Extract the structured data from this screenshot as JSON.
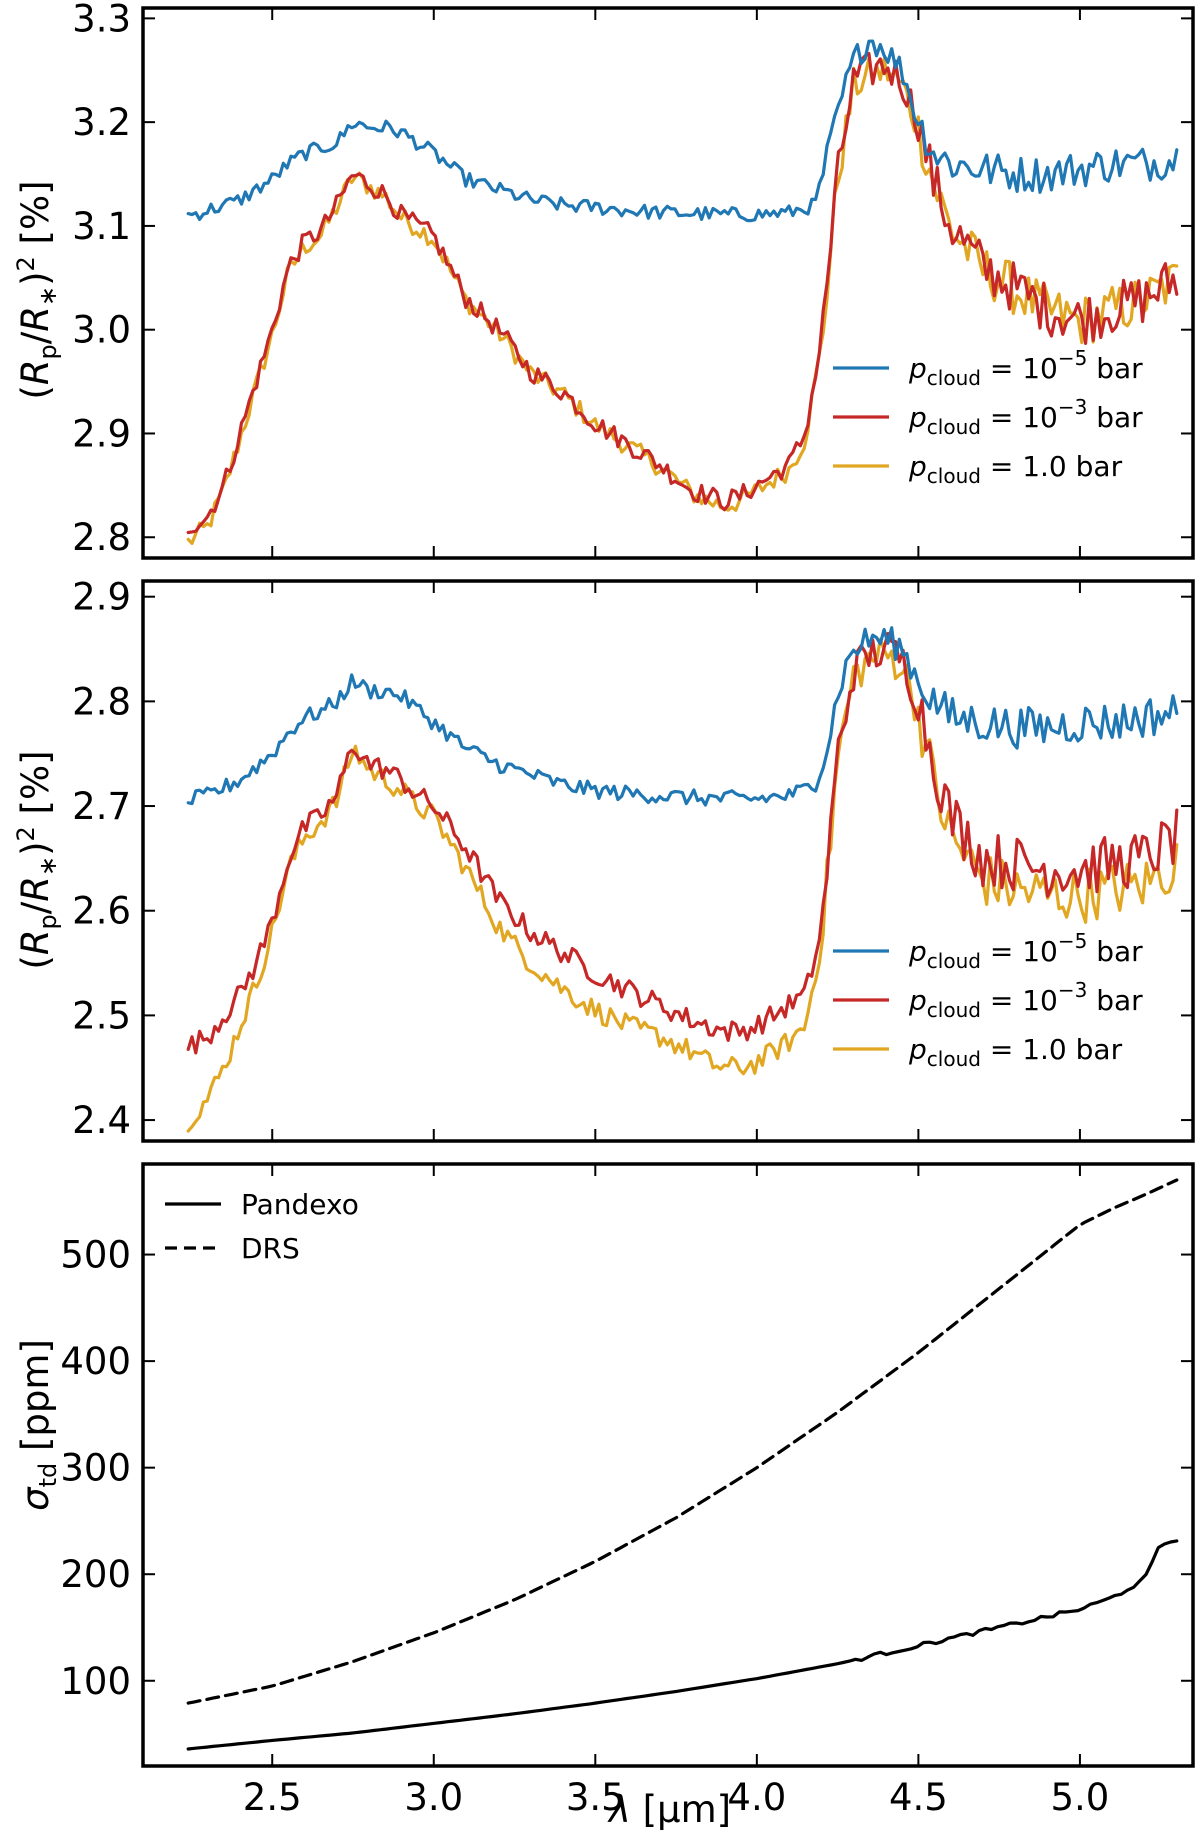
{
  "chart_data": [
    {
      "type": "line",
      "panel": "top",
      "xlabel": "",
      "ylabel_text": "(Rp/R*)² [%]",
      "xlim": [
        2.1,
        5.35
      ],
      "ylim": [
        2.78,
        3.31
      ],
      "xticks": [
        2.5,
        3.0,
        3.5,
        4.0,
        4.5,
        5.0
      ],
      "yticks": [
        2.8,
        2.9,
        3.0,
        3.1,
        3.2,
        3.3
      ],
      "ytick_labels": [
        "2.8",
        "2.9",
        "3.0",
        "3.1",
        "3.2",
        "3.3"
      ],
      "legend_position": "lower-right",
      "series": [
        {
          "name": "p_cloud = 10^-5 bar",
          "legend_value": "10",
          "legend_exp": "−5",
          "color": "#1f77b4",
          "x": [
            2.24,
            2.3,
            2.4,
            2.5,
            2.55,
            2.6,
            2.65,
            2.7,
            2.75,
            2.8,
            2.85,
            2.9,
            3.0,
            3.1,
            3.2,
            3.3,
            3.4,
            3.5,
            3.6,
            3.7,
            3.8,
            3.9,
            4.0,
            4.1,
            4.18,
            4.22,
            4.26,
            4.3,
            4.35,
            4.4,
            4.45,
            4.5,
            4.55,
            4.6,
            4.7,
            4.8,
            4.9,
            5.0,
            5.1,
            5.2,
            5.3
          ],
          "y": [
            3.11,
            3.115,
            3.125,
            3.145,
            3.16,
            3.17,
            3.175,
            3.18,
            3.2,
            3.195,
            3.195,
            3.19,
            3.17,
            3.145,
            3.135,
            3.125,
            3.12,
            3.118,
            3.115,
            3.113,
            3.112,
            3.111,
            3.111,
            3.113,
            3.12,
            3.17,
            3.22,
            3.26,
            3.28,
            3.27,
            3.25,
            3.2,
            3.17,
            3.16,
            3.155,
            3.15,
            3.15,
            3.155,
            3.16,
            3.16,
            3.165
          ],
          "noise": 0.01
        },
        {
          "name": "p_cloud = 10^-3 bar",
          "legend_value": "10",
          "legend_exp": "−3",
          "color": "#c62828",
          "x": [
            2.24,
            2.3,
            2.35,
            2.4,
            2.45,
            2.5,
            2.55,
            2.6,
            2.65,
            2.7,
            2.75,
            2.8,
            2.85,
            2.9,
            2.95,
            3.0,
            3.1,
            3.2,
            3.3,
            3.4,
            3.5,
            3.6,
            3.7,
            3.8,
            3.85,
            3.9,
            3.95,
            4.0,
            4.05,
            4.1,
            4.15,
            4.2,
            4.25,
            4.3,
            4.35,
            4.4,
            4.45,
            4.5,
            4.55,
            4.6,
            4.7,
            4.8,
            4.9,
            5.0,
            5.1,
            5.2,
            5.3
          ],
          "y": [
            2.81,
            2.82,
            2.85,
            2.9,
            2.95,
            3.0,
            3.06,
            3.085,
            3.095,
            3.12,
            3.15,
            3.14,
            3.13,
            3.11,
            3.1,
            3.09,
            3.03,
            3.0,
            2.96,
            2.94,
            2.91,
            2.89,
            2.87,
            2.845,
            2.84,
            2.835,
            2.84,
            2.85,
            2.86,
            2.87,
            2.9,
            2.99,
            3.15,
            3.24,
            3.25,
            3.255,
            3.24,
            3.2,
            3.14,
            3.1,
            3.06,
            3.04,
            3.02,
            3.01,
            3.02,
            3.03,
            3.05
          ],
          "noise": 0.014
        },
        {
          "name": "p_cloud = 1.0 bar",
          "legend_value": "1.0",
          "legend_exp": "",
          "color": "#e1a722",
          "x": [
            2.24,
            2.3,
            2.35,
            2.4,
            2.45,
            2.5,
            2.55,
            2.6,
            2.65,
            2.7,
            2.75,
            2.8,
            2.85,
            2.9,
            2.95,
            3.0,
            3.1,
            3.2,
            3.3,
            3.4,
            3.5,
            3.6,
            3.7,
            3.8,
            3.85,
            3.9,
            3.95,
            4.0,
            4.05,
            4.1,
            4.15,
            4.2,
            4.25,
            4.3,
            4.35,
            4.4,
            4.45,
            4.5,
            4.55,
            4.6,
            4.7,
            4.8,
            4.9,
            5.0,
            5.1,
            5.2,
            5.3
          ],
          "y": [
            2.795,
            2.81,
            2.845,
            2.895,
            2.945,
            2.995,
            3.055,
            3.08,
            3.09,
            3.118,
            3.148,
            3.138,
            3.128,
            3.108,
            3.098,
            3.088,
            3.028,
            2.998,
            2.958,
            2.938,
            2.908,
            2.888,
            2.868,
            2.842,
            2.835,
            2.83,
            2.835,
            2.845,
            2.855,
            2.865,
            2.895,
            2.985,
            3.145,
            3.235,
            3.245,
            3.25,
            3.235,
            3.195,
            3.138,
            3.098,
            3.058,
            3.038,
            3.018,
            3.008,
            3.018,
            3.028,
            3.048
          ],
          "noise": 0.014
        }
      ]
    },
    {
      "type": "line",
      "panel": "middle",
      "xlabel": "",
      "ylabel_text": "(Rp/R*)² [%]",
      "xlim": [
        2.1,
        5.35
      ],
      "ylim": [
        2.38,
        2.915
      ],
      "xticks": [
        2.5,
        3.0,
        3.5,
        4.0,
        4.5,
        5.0
      ],
      "yticks": [
        2.4,
        2.5,
        2.6,
        2.7,
        2.8,
        2.9
      ],
      "ytick_labels": [
        "2.4",
        "2.5",
        "2.6",
        "2.7",
        "2.8",
        "2.9"
      ],
      "legend_position": "lower-right",
      "series": [
        {
          "name": "p_cloud = 10^-5 bar",
          "legend_value": "10",
          "legend_exp": "−5",
          "color": "#1f77b4",
          "x": [
            2.24,
            2.3,
            2.4,
            2.5,
            2.55,
            2.6,
            2.65,
            2.7,
            2.75,
            2.8,
            2.85,
            2.9,
            3.0,
            3.1,
            3.2,
            3.3,
            3.4,
            3.5,
            3.6,
            3.7,
            3.8,
            3.9,
            4.0,
            4.1,
            4.18,
            4.22,
            4.26,
            4.3,
            4.35,
            4.4,
            4.45,
            4.5,
            4.55,
            4.6,
            4.7,
            4.8,
            4.9,
            5.0,
            5.1,
            5.2,
            5.3
          ],
          "y": [
            2.705,
            2.71,
            2.725,
            2.75,
            2.77,
            2.785,
            2.79,
            2.8,
            2.82,
            2.81,
            2.81,
            2.805,
            2.78,
            2.755,
            2.74,
            2.73,
            2.72,
            2.715,
            2.712,
            2.71,
            2.708,
            2.707,
            2.707,
            2.71,
            2.72,
            2.76,
            2.82,
            2.85,
            2.86,
            2.86,
            2.85,
            2.82,
            2.8,
            2.785,
            2.78,
            2.775,
            2.775,
            2.78,
            2.78,
            2.785,
            2.79
          ],
          "noise": 0.011
        },
        {
          "name": "p_cloud = 10^-3 bar",
          "legend_value": "10",
          "legend_exp": "−3",
          "color": "#c62828",
          "x": [
            2.24,
            2.3,
            2.35,
            2.4,
            2.45,
            2.5,
            2.55,
            2.6,
            2.65,
            2.7,
            2.75,
            2.8,
            2.85,
            2.9,
            2.95,
            3.0,
            3.1,
            3.2,
            3.3,
            3.4,
            3.5,
            3.6,
            3.7,
            3.8,
            3.85,
            3.9,
            3.95,
            4.0,
            4.05,
            4.1,
            4.15,
            4.2,
            4.25,
            4.3,
            4.35,
            4.4,
            4.45,
            4.5,
            4.55,
            4.6,
            4.7,
            4.8,
            4.9,
            5.0,
            5.1,
            5.2,
            5.3
          ],
          "y": [
            2.47,
            2.48,
            2.5,
            2.52,
            2.55,
            2.59,
            2.65,
            2.68,
            2.69,
            2.71,
            2.76,
            2.74,
            2.735,
            2.725,
            2.71,
            2.7,
            2.66,
            2.61,
            2.58,
            2.56,
            2.54,
            2.525,
            2.51,
            2.495,
            2.49,
            2.485,
            2.485,
            2.49,
            2.5,
            2.51,
            2.52,
            2.58,
            2.75,
            2.83,
            2.845,
            2.85,
            2.84,
            2.8,
            2.74,
            2.69,
            2.65,
            2.645,
            2.64,
            2.64,
            2.645,
            2.65,
            2.67
          ],
          "noise": 0.015
        },
        {
          "name": "p_cloud = 1.0 bar",
          "legend_value": "1.0",
          "legend_exp": "",
          "color": "#e1a722",
          "x": [
            2.24,
            2.3,
            2.35,
            2.4,
            2.45,
            2.5,
            2.55,
            2.6,
            2.65,
            2.7,
            2.75,
            2.8,
            2.85,
            2.9,
            2.95,
            3.0,
            3.1,
            3.2,
            3.3,
            3.4,
            3.5,
            3.6,
            3.7,
            3.8,
            3.85,
            3.9,
            3.95,
            4.0,
            4.05,
            4.1,
            4.15,
            4.2,
            4.25,
            4.3,
            4.35,
            4.4,
            4.45,
            4.5,
            4.55,
            4.6,
            4.7,
            4.8,
            4.9,
            5.0,
            5.1,
            5.2,
            5.3
          ],
          "y": [
            2.4,
            2.42,
            2.45,
            2.49,
            2.53,
            2.58,
            2.64,
            2.67,
            2.685,
            2.705,
            2.755,
            2.735,
            2.725,
            2.715,
            2.7,
            2.69,
            2.64,
            2.585,
            2.55,
            2.525,
            2.505,
            2.49,
            2.48,
            2.465,
            2.455,
            2.45,
            2.45,
            2.455,
            2.465,
            2.475,
            2.49,
            2.57,
            2.745,
            2.825,
            2.84,
            2.845,
            2.835,
            2.79,
            2.72,
            2.67,
            2.63,
            2.62,
            2.615,
            2.615,
            2.62,
            2.625,
            2.645
          ],
          "noise": 0.015
        }
      ]
    },
    {
      "type": "line",
      "panel": "bottom",
      "xlabel_text": "λ [μm]",
      "ylabel_text": "σtd [ppm]",
      "xlim": [
        2.1,
        5.35
      ],
      "ylim": [
        20,
        585
      ],
      "xticks": [
        2.5,
        3.0,
        3.5,
        4.0,
        4.5,
        5.0
      ],
      "xtick_labels": [
        "2.5",
        "3.0",
        "3.5",
        "4.0",
        "4.5",
        "5.0"
      ],
      "yticks": [
        100,
        200,
        300,
        400,
        500
      ],
      "ytick_labels": [
        "100",
        "200",
        "300",
        "400",
        "500"
      ],
      "legend_position": "top-left",
      "series": [
        {
          "name": "Pandexo",
          "color": "#000000",
          "dash": "solid",
          "x": [
            2.24,
            2.5,
            2.75,
            3.0,
            3.25,
            3.5,
            3.75,
            4.0,
            4.25,
            4.5,
            4.75,
            5.0,
            5.1,
            5.2,
            5.25,
            5.3
          ],
          "y": [
            36,
            44,
            51,
            60,
            69,
            79,
            90,
            102,
            116,
            133,
            150,
            167,
            178,
            195,
            228,
            232
          ]
        },
        {
          "name": "DRS",
          "color": "#000000",
          "dash": "dashed",
          "x": [
            2.24,
            2.5,
            2.75,
            3.0,
            3.25,
            3.5,
            3.75,
            4.0,
            4.25,
            4.5,
            4.75,
            5.0,
            5.1,
            5.2,
            5.3
          ],
          "y": [
            79,
            95,
            118,
            145,
            176,
            212,
            253,
            300,
            352,
            408,
            468,
            528,
            543,
            556,
            570
          ]
        }
      ]
    }
  ],
  "ylabel_top": {
    "open": "(",
    "R": "R",
    "p": "p",
    "slash": "/",
    "R2": "R",
    "star": "∗",
    "close": ")",
    "sq": "2",
    "unit": "[%]"
  },
  "ylabel_bottom": {
    "sigma": "σ",
    "sub": "td",
    "unit": "[ppm]"
  },
  "xlabel_bottom": {
    "lambda": "λ",
    "unit": "[μm]"
  },
  "legend_cloud": {
    "p": "p",
    "sub": "cloud",
    "eq": " = ",
    "bar": " bar"
  }
}
